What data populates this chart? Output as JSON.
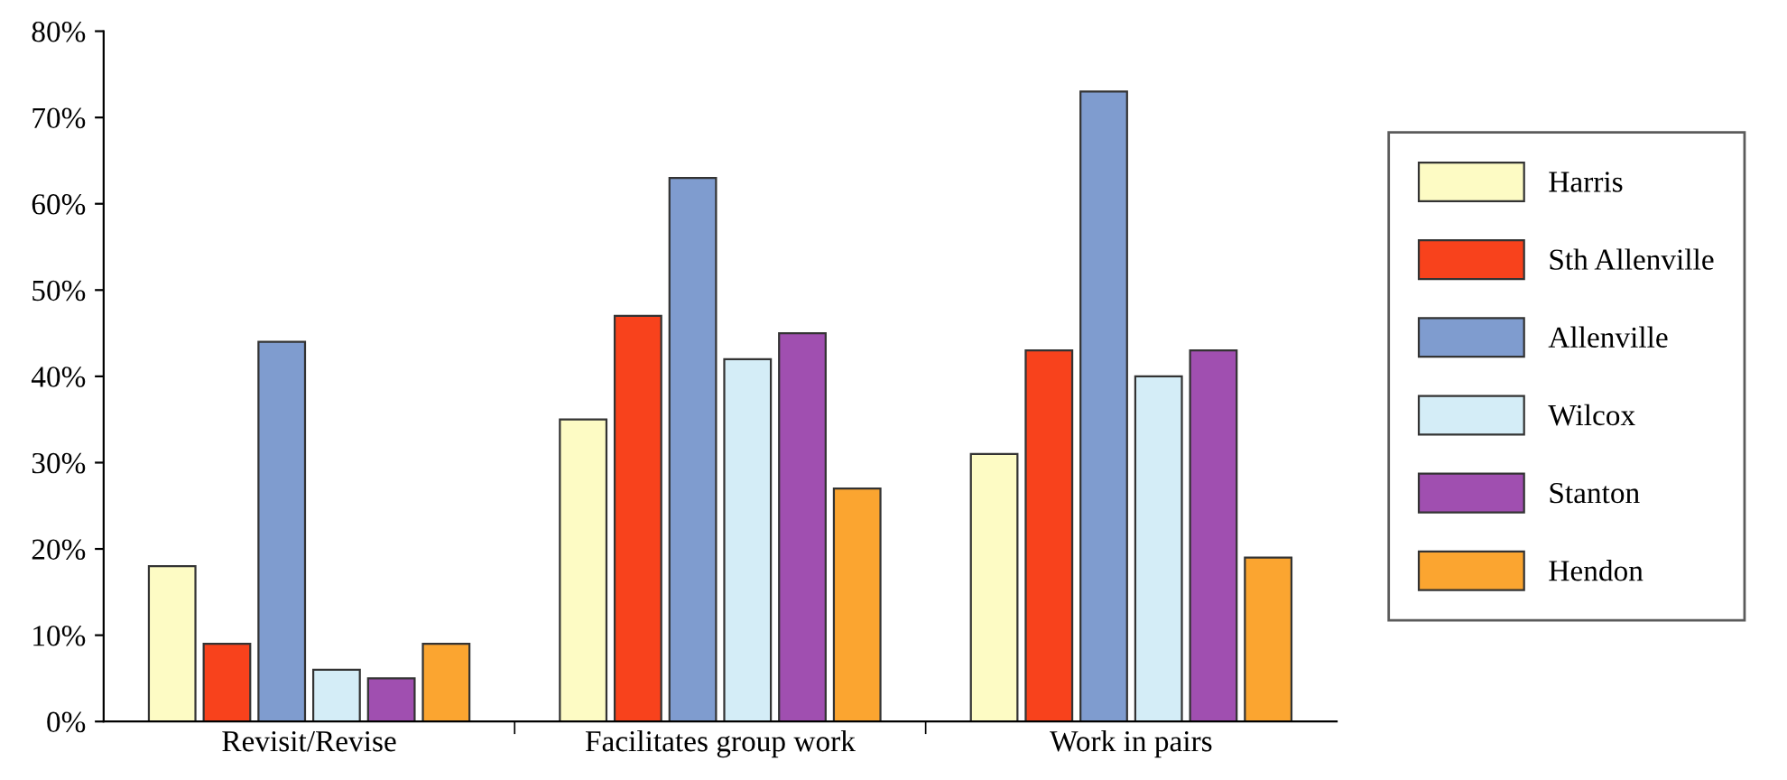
{
  "chart_data": {
    "type": "bar",
    "categories": [
      "Revisit/Revise",
      "Facilitates group work",
      "Work in pairs"
    ],
    "series": [
      {
        "name": "Harris",
        "color": "#fdfbc4",
        "values": [
          18,
          35,
          31
        ]
      },
      {
        "name": "Sth Allenville",
        "color": "#f8421c",
        "values": [
          9,
          47,
          43
        ]
      },
      {
        "name": "Allenville",
        "color": "#7f9ccf",
        "values": [
          44,
          63,
          73
        ]
      },
      {
        "name": "Wilcox",
        "color": "#d4edf7",
        "values": [
          6,
          42,
          40
        ]
      },
      {
        "name": "Stanton",
        "color": "#a04fb0",
        "values": [
          5,
          45,
          43
        ]
      },
      {
        "name": "Hendon",
        "color": "#fba530",
        "values": [
          9,
          27,
          19
        ]
      }
    ],
    "ylim": [
      0,
      80
    ],
    "yticks": [
      {
        "value": 0,
        "label": "0%"
      },
      {
        "value": 10,
        "label": "10%"
      },
      {
        "value": 20,
        "label": "20%"
      },
      {
        "value": 30,
        "label": "30%"
      },
      {
        "value": 40,
        "label": "40%"
      },
      {
        "value": 50,
        "label": "50%"
      },
      {
        "value": 60,
        "label": "60%"
      },
      {
        "value": 70,
        "label": "70%"
      },
      {
        "value": 80,
        "label": "80%"
      }
    ],
    "grid": false,
    "legend": "right"
  }
}
